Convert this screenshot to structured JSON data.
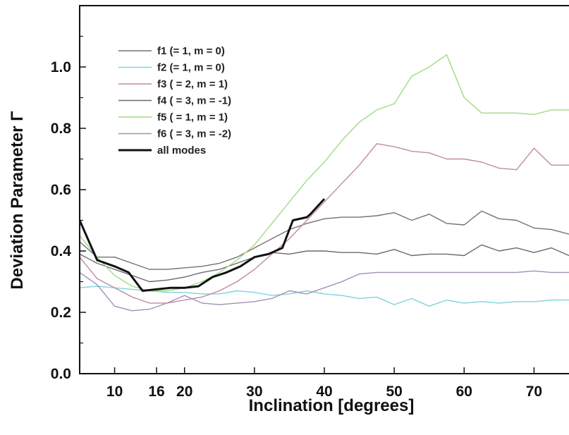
{
  "chart_data": {
    "type": "line",
    "xlabel": "Inclination [degrees]",
    "ylabel": "Deviation Parameter Γ",
    "xlim": [
      5,
      75
    ],
    "ylim": [
      0,
      1.2
    ],
    "x_ticks": [
      10,
      16,
      20,
      30,
      40,
      50,
      60,
      70
    ],
    "x_tick_labels": [
      "10",
      "16",
      "20",
      "30",
      "40",
      "50",
      "60",
      "70"
    ],
    "y_ticks": [
      0.0,
      0.2,
      0.4,
      0.6,
      0.8,
      1.0
    ],
    "y_tick_labels": [
      "0.0",
      "0.2",
      "0.4",
      "0.6",
      "0.8",
      "1.0"
    ],
    "legend_position": "top-left",
    "grid": false,
    "series": [
      {
        "name": "f1 (= 1, m = 0)",
        "color": "#7a6e74",
        "width": 1.4,
        "x": [
          5,
          7.5,
          10,
          12.5,
          15,
          17.5,
          20,
          22.5,
          25,
          27.5,
          30,
          32.5,
          35,
          37.5,
          40,
          42.5,
          45,
          47.5,
          50,
          52.5,
          55,
          57.5,
          60,
          62.5,
          65,
          67.5,
          70,
          72.5,
          75
        ],
        "y": [
          0.43,
          0.38,
          0.38,
          0.36,
          0.34,
          0.34,
          0.345,
          0.35,
          0.36,
          0.38,
          0.41,
          0.44,
          0.47,
          0.49,
          0.505,
          0.51,
          0.51,
          0.515,
          0.525,
          0.5,
          0.52,
          0.49,
          0.485,
          0.53,
          0.505,
          0.5,
          0.475,
          0.47,
          0.455
        ]
      },
      {
        "name": "f2 (= 1, m = 0)",
        "color": "#7fd3dc",
        "width": 1.4,
        "x": [
          5,
          7.5,
          10,
          12.5,
          15,
          17.5,
          20,
          22.5,
          25,
          27.5,
          30,
          32.5,
          35,
          37.5,
          40,
          42.5,
          45,
          47.5,
          50,
          52.5,
          55,
          57.5,
          60,
          62.5,
          65,
          67.5,
          70,
          72.5,
          75
        ],
        "y": [
          0.28,
          0.285,
          0.28,
          0.275,
          0.27,
          0.265,
          0.265,
          0.26,
          0.26,
          0.27,
          0.265,
          0.255,
          0.26,
          0.27,
          0.26,
          0.255,
          0.245,
          0.25,
          0.225,
          0.245,
          0.22,
          0.24,
          0.23,
          0.235,
          0.23,
          0.235,
          0.235,
          0.24,
          0.24
        ]
      },
      {
        "name": "f3 ( = 2, m = 1)",
        "color": "#c08aa2",
        "width": 1.4,
        "x": [
          5,
          7.5,
          10,
          12.5,
          15,
          17.5,
          20,
          22.5,
          25,
          27.5,
          30,
          32.5,
          35,
          37.5,
          40,
          42.5,
          45,
          47.5,
          50,
          52.5,
          55,
          57.5,
          60,
          62.5,
          65,
          67.5,
          70,
          72.5,
          75
        ],
        "y": [
          0.38,
          0.31,
          0.28,
          0.25,
          0.23,
          0.23,
          0.24,
          0.25,
          0.27,
          0.3,
          0.34,
          0.39,
          0.44,
          0.5,
          0.56,
          0.62,
          0.68,
          0.75,
          0.74,
          0.725,
          0.72,
          0.7,
          0.7,
          0.69,
          0.67,
          0.665,
          0.735,
          0.68,
          0.68
        ]
      },
      {
        "name": "f4 ( = 3, m = -1)",
        "color": "#6f6672",
        "width": 1.4,
        "x": [
          5,
          7.5,
          10,
          12.5,
          15,
          17.5,
          20,
          22.5,
          25,
          27.5,
          30,
          32.5,
          35,
          37.5,
          40,
          42.5,
          45,
          47.5,
          50,
          52.5,
          55,
          57.5,
          60,
          62.5,
          65,
          67.5,
          70,
          72.5,
          75
        ],
        "y": [
          0.39,
          0.36,
          0.34,
          0.32,
          0.3,
          0.305,
          0.315,
          0.33,
          0.34,
          0.36,
          0.38,
          0.395,
          0.39,
          0.4,
          0.4,
          0.395,
          0.395,
          0.39,
          0.405,
          0.385,
          0.39,
          0.39,
          0.385,
          0.42,
          0.4,
          0.41,
          0.395,
          0.41,
          0.385
        ]
      },
      {
        "name": "f5 ( = 1, m = 1)",
        "color": "#9fdc86",
        "width": 1.4,
        "x": [
          5,
          7.5,
          10,
          12.5,
          15,
          17.5,
          20,
          22.5,
          25,
          27.5,
          30,
          32.5,
          35,
          37.5,
          40,
          42.5,
          45,
          47.5,
          50,
          52.5,
          55,
          57.5,
          60,
          62.5,
          65,
          67.5,
          70,
          72.5,
          75
        ],
        "y": [
          0.45,
          0.38,
          0.32,
          0.285,
          0.27,
          0.27,
          0.28,
          0.3,
          0.33,
          0.37,
          0.42,
          0.49,
          0.56,
          0.63,
          0.69,
          0.76,
          0.82,
          0.86,
          0.88,
          0.97,
          1.0,
          1.04,
          0.9,
          0.85,
          0.85,
          0.85,
          0.845,
          0.86,
          0.86
        ]
      },
      {
        "name": "f6 ( = 3, m = -2)",
        "color": "#a38fb8",
        "width": 1.4,
        "x": [
          5,
          7.5,
          10,
          12.5,
          15,
          17.5,
          20,
          22.5,
          25,
          27.5,
          30,
          32.5,
          35,
          37.5,
          40,
          42.5,
          45,
          47.5,
          50,
          52.5,
          55,
          57.5,
          60,
          62.5,
          65,
          67.5,
          70,
          72.5,
          75
        ],
        "y": [
          0.33,
          0.29,
          0.22,
          0.205,
          0.21,
          0.23,
          0.255,
          0.23,
          0.225,
          0.23,
          0.235,
          0.245,
          0.27,
          0.26,
          0.28,
          0.3,
          0.325,
          0.33,
          0.33,
          0.33,
          0.33,
          0.33,
          0.33,
          0.33,
          0.33,
          0.33,
          0.335,
          0.33,
          0.33
        ]
      },
      {
        "name": "all modes",
        "color": "#111111",
        "width": 3,
        "x": [
          5,
          7.5,
          10,
          12,
          14,
          16,
          18,
          20,
          22,
          24,
          26,
          28,
          30,
          32,
          34,
          35.5,
          37.5,
          38,
          40
        ],
        "y": [
          0.5,
          0.37,
          0.35,
          0.33,
          0.27,
          0.275,
          0.28,
          0.28,
          0.285,
          0.315,
          0.33,
          0.35,
          0.38,
          0.39,
          0.41,
          0.5,
          0.51,
          0.52,
          0.57
        ]
      }
    ]
  }
}
